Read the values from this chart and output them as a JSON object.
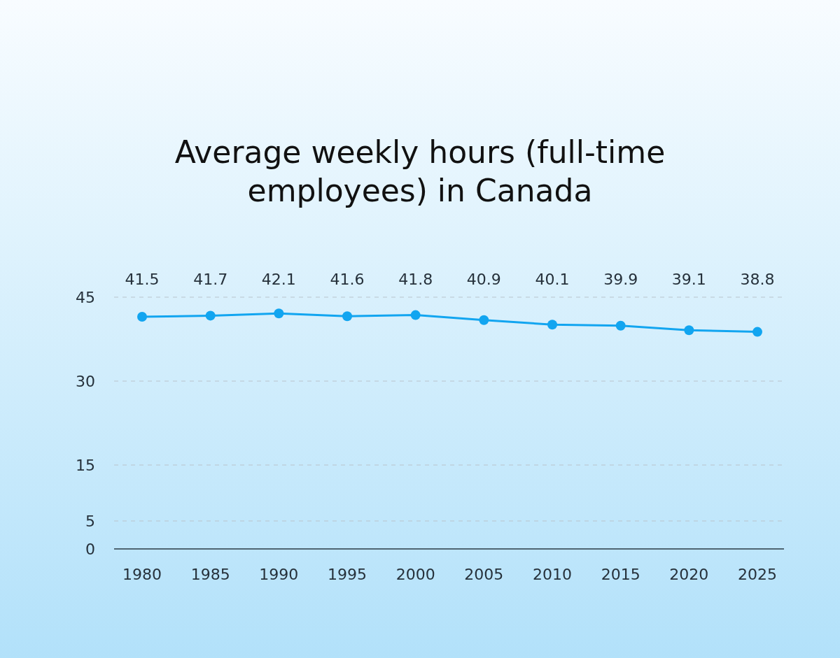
{
  "chart_data": {
    "type": "line",
    "title": "Average weekly hours (full-time employees) in Canada",
    "categories": [
      "1980",
      "1985",
      "1990",
      "1995",
      "2000",
      "2005",
      "2010",
      "2015",
      "2020",
      "2025"
    ],
    "values": [
      41.5,
      41.7,
      42.1,
      41.6,
      41.8,
      40.9,
      40.1,
      39.9,
      39.1,
      38.8
    ],
    "color": "#12a5f0",
    "ylim": [
      0,
      45
    ],
    "yticks": [
      0,
      5,
      15,
      30,
      45
    ],
    "grid": "y",
    "data_labels": true,
    "marker": "circle",
    "line_style": "solid"
  }
}
